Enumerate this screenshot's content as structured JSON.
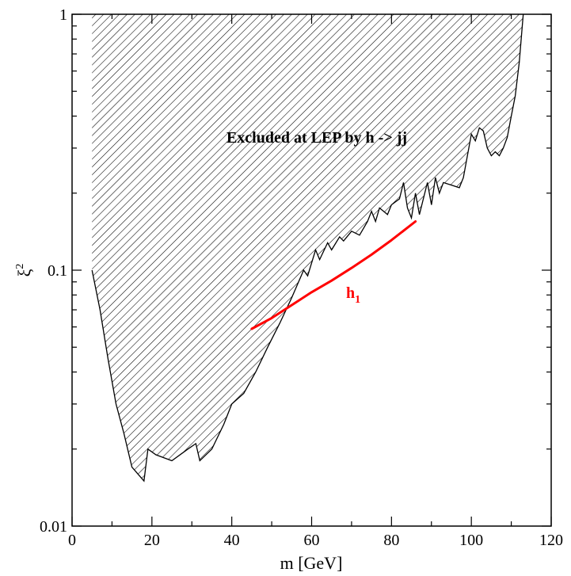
{
  "chart_data": {
    "type": "area",
    "xlabel": "m [GeV]",
    "ylabel": "ξ",
    "ylabel_sup": "2",
    "xlim": [
      0,
      120
    ],
    "ylim": [
      0.01,
      1
    ],
    "yscale": "log",
    "x_ticks": [
      "0",
      "20",
      "40",
      "60",
      "80",
      "100",
      "120"
    ],
    "y_ticks": [
      "0.01",
      "0.1",
      "1"
    ],
    "grid": false,
    "annotation": "Excluded at LEP by h -> jj",
    "excluded_region": {
      "fill": "hatched",
      "boundary": [
        [
          5,
          0.1
        ],
        [
          7,
          0.07
        ],
        [
          9,
          0.045
        ],
        [
          11,
          0.03
        ],
        [
          13,
          0.023
        ],
        [
          15,
          0.017
        ],
        [
          18,
          0.015
        ],
        [
          19,
          0.02
        ],
        [
          21,
          0.019
        ],
        [
          25,
          0.018
        ],
        [
          29,
          0.02
        ],
        [
          31,
          0.021
        ],
        [
          32,
          0.018
        ],
        [
          35,
          0.02
        ],
        [
          38,
          0.025
        ],
        [
          40,
          0.03
        ],
        [
          43,
          0.033
        ],
        [
          46,
          0.04
        ],
        [
          49,
          0.05
        ],
        [
          52,
          0.062
        ],
        [
          55,
          0.078
        ],
        [
          58,
          0.1
        ],
        [
          59,
          0.095
        ],
        [
          61,
          0.12
        ],
        [
          62,
          0.11
        ],
        [
          64,
          0.128
        ],
        [
          65,
          0.12
        ],
        [
          67,
          0.135
        ],
        [
          68,
          0.13
        ],
        [
          70,
          0.142
        ],
        [
          72,
          0.137
        ],
        [
          74,
          0.155
        ],
        [
          75,
          0.17
        ],
        [
          76,
          0.155
        ],
        [
          77,
          0.175
        ],
        [
          78,
          0.17
        ],
        [
          79,
          0.165
        ],
        [
          80,
          0.18
        ],
        [
          82,
          0.19
        ],
        [
          83,
          0.22
        ],
        [
          84,
          0.175
        ],
        [
          85,
          0.16
        ],
        [
          86,
          0.2
        ],
        [
          87,
          0.165
        ],
        [
          89,
          0.22
        ],
        [
          90,
          0.18
        ],
        [
          91,
          0.23
        ],
        [
          92,
          0.2
        ],
        [
          93,
          0.22
        ],
        [
          95,
          0.215
        ],
        [
          97,
          0.21
        ],
        [
          98,
          0.23
        ],
        [
          100,
          0.34
        ],
        [
          101,
          0.32
        ],
        [
          102,
          0.36
        ],
        [
          103,
          0.35
        ],
        [
          104,
          0.3
        ],
        [
          105,
          0.28
        ],
        [
          106,
          0.29
        ],
        [
          107,
          0.28
        ],
        [
          108,
          0.3
        ],
        [
          109,
          0.33
        ],
        [
          110,
          0.4
        ],
        [
          111,
          0.48
        ],
        [
          112,
          0.65
        ],
        [
          113,
          1.0
        ]
      ]
    },
    "series": [
      {
        "name": "h",
        "name_sub": "1",
        "color": "#ff0000",
        "points": [
          [
            45,
            0.059
          ],
          [
            50,
            0.065
          ],
          [
            55,
            0.073
          ],
          [
            60,
            0.082
          ],
          [
            65,
            0.091
          ],
          [
            70,
            0.102
          ],
          [
            75,
            0.115
          ],
          [
            80,
            0.131
          ],
          [
            86,
            0.155
          ]
        ]
      }
    ]
  }
}
